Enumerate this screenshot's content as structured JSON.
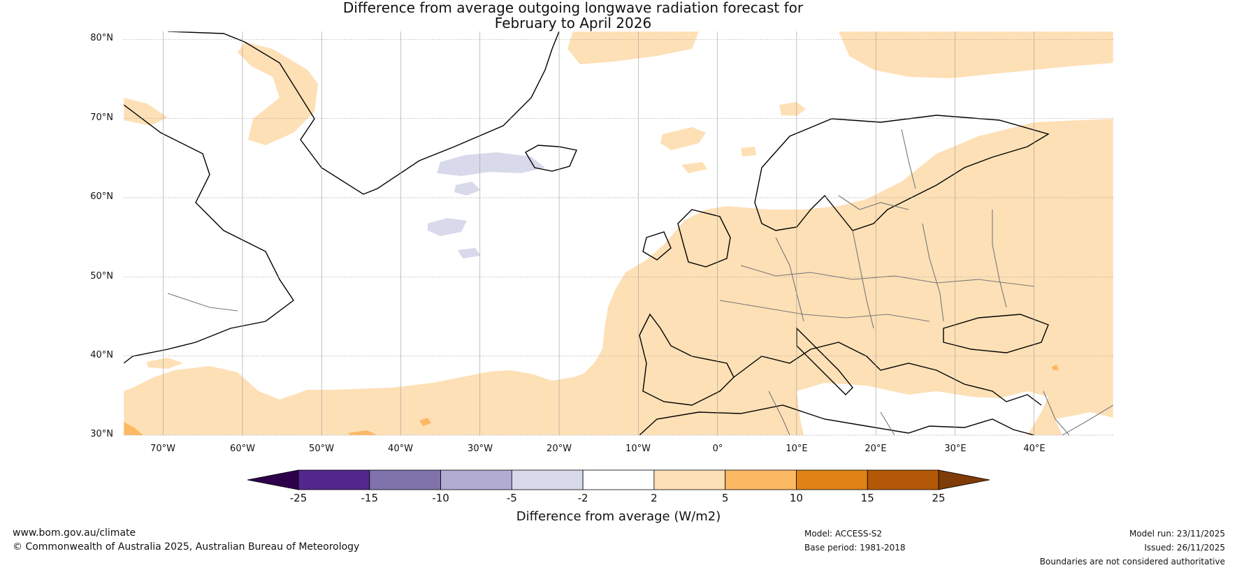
{
  "title": {
    "line1": "Difference from average outgoing longwave radiation forecast for",
    "line2": "February to April 2026"
  },
  "map": {
    "lat_labels": [
      "80°N",
      "70°N",
      "60°N",
      "50°N",
      "40°N",
      "30°N"
    ],
    "lon_labels": [
      "70°W",
      "60°W",
      "50°W",
      "40°W",
      "30°W",
      "20°W",
      "10°W",
      "0°",
      "10°E",
      "20°E",
      "30°E",
      "40°E"
    ],
    "extent": {
      "lon_min": -75,
      "lon_max": 50,
      "lat_min": 30,
      "lat_max": 81
    }
  },
  "colorbar": {
    "boundaries": [
      -25,
      -15,
      -10,
      -5,
      -2,
      2,
      5,
      10,
      15,
      25
    ],
    "tick_labels": [
      "-25",
      "-15",
      "-10",
      "-5",
      "-2",
      "2",
      "5",
      "10",
      "15",
      "25"
    ],
    "colors": [
      "#54278f",
      "#8073ac",
      "#b2abd2",
      "#d8daeb",
      "#ffffff",
      "#fee0b6",
      "#fdb863",
      "#e08214",
      "#b35806"
    ],
    "under_color": "#2d004b",
    "over_color": "#7f3b08",
    "label": "Difference from average (W/m2)"
  },
  "footer": {
    "url": "www.bom.gov.au/climate",
    "copyright": "© Commonwealth of Australia 2025, Australian Bureau of Meteorology",
    "model": "Model: ACCESS-S2",
    "base_period": "Base period: 1981-2018",
    "model_run": "Model run: 23/11/2025",
    "issued": "Issued: 26/11/2025",
    "disclaimer": "Boundaries are not considered authoritative"
  }
}
